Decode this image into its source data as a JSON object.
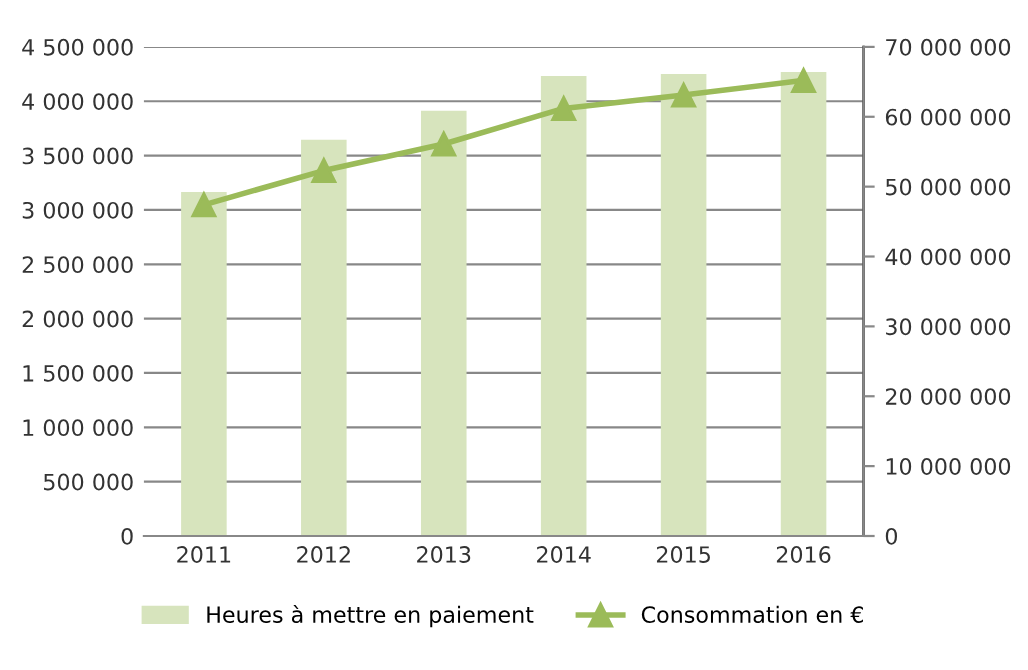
{
  "chart_data": {
    "type": "bar",
    "categories": [
      "2011",
      "2012",
      "2013",
      "2014",
      "2015",
      "2016"
    ],
    "series": [
      {
        "name": "Heures à mettre en paiement",
        "color": "#d7e4bd",
        "values": [
          3164000,
          3645000,
          3912000,
          4233000,
          4251000,
          4268000
        ]
      },
      {
        "name": "Consommation en €",
        "type": "line",
        "axis": "y2",
        "color": "#9bbb59",
        "marker": "triangle",
        "values": [
          47400000,
          52300000,
          56100000,
          61200000,
          63100000,
          65200000
        ]
      }
    ],
    "ylim": [
      0,
      4500000
    ],
    "yticks": [
      0,
      {
        "value": 500000,
        "label": "500 000"
      },
      {
        "value": 1000000,
        "label": "1 000 000"
      },
      {
        "value": 1500000,
        "label": "1 500 000"
      },
      {
        "value": 2000000,
        "label": "2 000 000"
      },
      {
        "value": 2500000,
        "label": "2 500 000"
      },
      {
        "value": 3000000,
        "label": "3 000 000"
      },
      {
        "value": 3500000,
        "label": "3 500 000"
      },
      {
        "value": 4000000,
        "label": "4 000 000"
      },
      {
        "value": 4500000,
        "label": "4 500 000"
      }
    ],
    "y2lim": [
      0,
      70000000
    ],
    "y2ticks": [
      0,
      {
        "value": 10000000,
        "label": "10 000 000"
      },
      {
        "value": 20000000,
        "label": "20 000 000"
      },
      {
        "value": 30000000,
        "label": "30 000 000"
      },
      {
        "value": 40000000,
        "label": "40 000 000"
      },
      {
        "value": 50000000,
        "label": "50 000 000"
      },
      {
        "value": 60000000,
        "label": "60 000 000"
      },
      {
        "value": 70000000,
        "label": "70 000 000"
      }
    ],
    "grid": "y",
    "legend": "bottom"
  }
}
